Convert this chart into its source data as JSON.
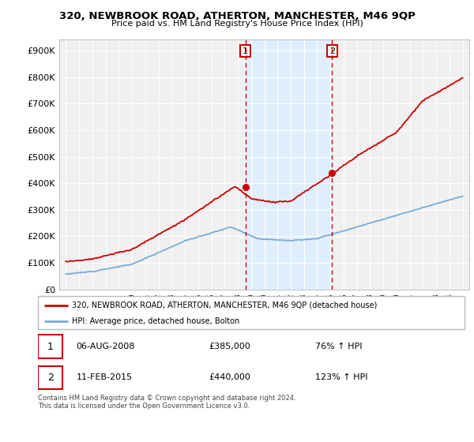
{
  "title": "320, NEWBROOK ROAD, ATHERTON, MANCHESTER, M46 9QP",
  "subtitle": "Price paid vs. HM Land Registry's House Price Index (HPI)",
  "legend_line1": "320, NEWBROOK ROAD, ATHERTON, MANCHESTER, M46 9QP (detached house)",
  "legend_line2": "HPI: Average price, detached house, Bolton",
  "footnote": "Contains HM Land Registry data © Crown copyright and database right 2024.\nThis data is licensed under the Open Government Licence v3.0.",
  "table_row1": [
    "1",
    "06-AUG-2008",
    "£385,000",
    "76% ↑ HPI"
  ],
  "table_row2": [
    "2",
    "11-FEB-2015",
    "£440,000",
    "123% ↑ HPI"
  ],
  "red_color": "#cc0000",
  "blue_color": "#7aabdb",
  "shade_color": "#ddeeff",
  "marker1_year": 2008.58,
  "marker1_price": 385000,
  "marker2_year": 2015.12,
  "marker2_price": 440000,
  "ylim": [
    0,
    940000
  ],
  "yticks": [
    0,
    100000,
    200000,
    300000,
    400000,
    500000,
    600000,
    700000,
    800000,
    900000
  ],
  "ytick_labels": [
    "£0",
    "£100K",
    "£200K",
    "£300K",
    "£400K",
    "£500K",
    "£600K",
    "£700K",
    "£800K",
    "£900K"
  ],
  "xlim_start": 1994.5,
  "xlim_end": 2025.5,
  "bg_color": "#f0f0f0"
}
